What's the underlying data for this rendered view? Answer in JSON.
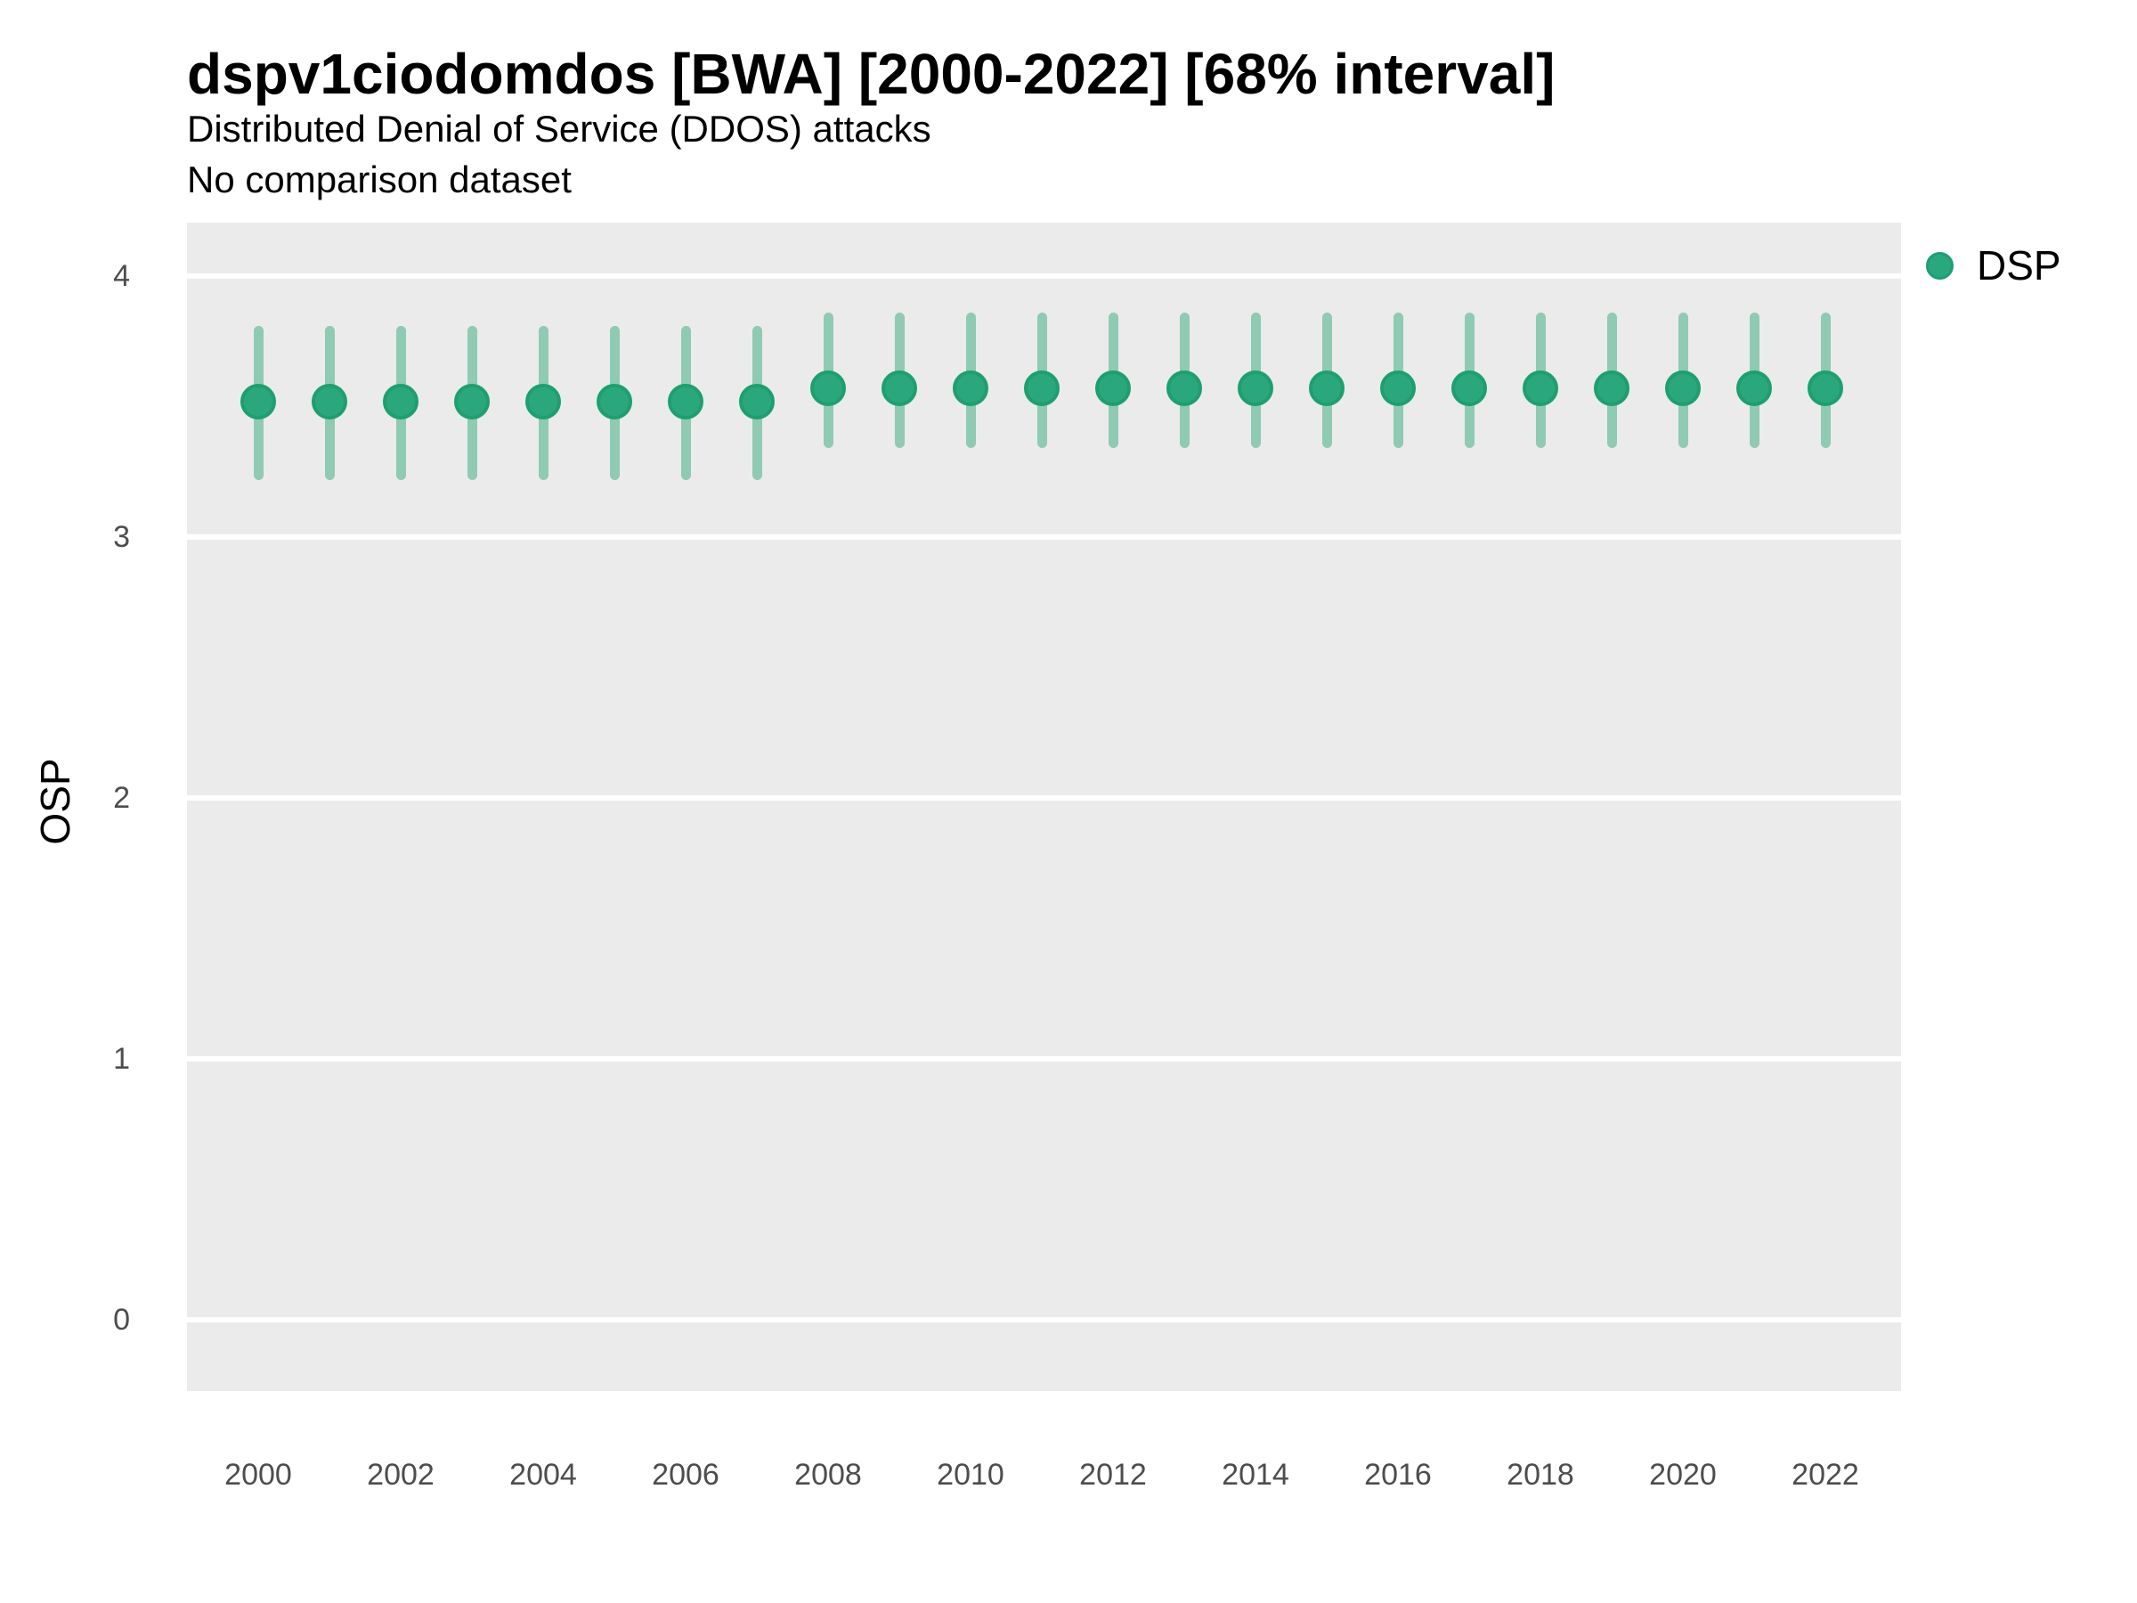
{
  "header": {
    "title": "dspv1ciodomdos [BWA] [2000-2022] [68% interval]",
    "subtitle": "Distributed Denial of Service (DDOS) attacks",
    "note": "No comparison dataset"
  },
  "legend": {
    "position": "right-top",
    "items": [
      {
        "label": "DSP",
        "color": "#2ba77d"
      }
    ]
  },
  "chart_data": {
    "type": "scatter",
    "variant": "pointrange",
    "title": "dspv1ciodomdos [BWA] [2000-2022] [68% interval]",
    "subtitle": "Distributed Denial of Service (DDOS) attacks",
    "note": "No comparison dataset",
    "interval_level": "68%",
    "xlabel": "",
    "ylabel": "OSP",
    "x": [
      2000,
      2001,
      2002,
      2003,
      2004,
      2005,
      2006,
      2007,
      2008,
      2009,
      2010,
      2011,
      2012,
      2013,
      2014,
      2015,
      2016,
      2017,
      2018,
      2019,
      2020,
      2021,
      2022
    ],
    "series": [
      {
        "name": "DSP",
        "values": [
          3.52,
          3.52,
          3.52,
          3.52,
          3.52,
          3.52,
          3.52,
          3.52,
          3.57,
          3.57,
          3.57,
          3.57,
          3.57,
          3.57,
          3.57,
          3.57,
          3.57,
          3.57,
          3.57,
          3.57,
          3.57,
          3.57,
          3.57
        ],
        "lower": [
          3.22,
          3.22,
          3.22,
          3.22,
          3.22,
          3.22,
          3.22,
          3.22,
          3.34,
          3.34,
          3.34,
          3.34,
          3.34,
          3.34,
          3.34,
          3.34,
          3.34,
          3.34,
          3.34,
          3.34,
          3.34,
          3.34,
          3.34
        ],
        "upper": [
          3.81,
          3.81,
          3.81,
          3.81,
          3.81,
          3.81,
          3.81,
          3.81,
          3.86,
          3.86,
          3.86,
          3.86,
          3.86,
          3.86,
          3.86,
          3.86,
          3.86,
          3.86,
          3.86,
          3.86,
          3.86,
          3.86,
          3.86
        ]
      }
    ],
    "yticks": [
      0,
      1,
      2,
      3,
      4
    ],
    "xticks": [
      2000,
      2002,
      2004,
      2006,
      2008,
      2010,
      2012,
      2014,
      2016,
      2018,
      2020,
      2022
    ],
    "ylim": [
      -0.27,
      4.2
    ],
    "grid": "horizontal-major-only",
    "legend_position": "right-top",
    "colors": {
      "point": "#2ba77d",
      "point_border": "#1e9f6f",
      "interval_bar": "#8fcab2",
      "panel_background": "#ebebeb",
      "gridline": "#ffffff",
      "axis_text": "#4d4d4d",
      "text": "#000000"
    }
  }
}
